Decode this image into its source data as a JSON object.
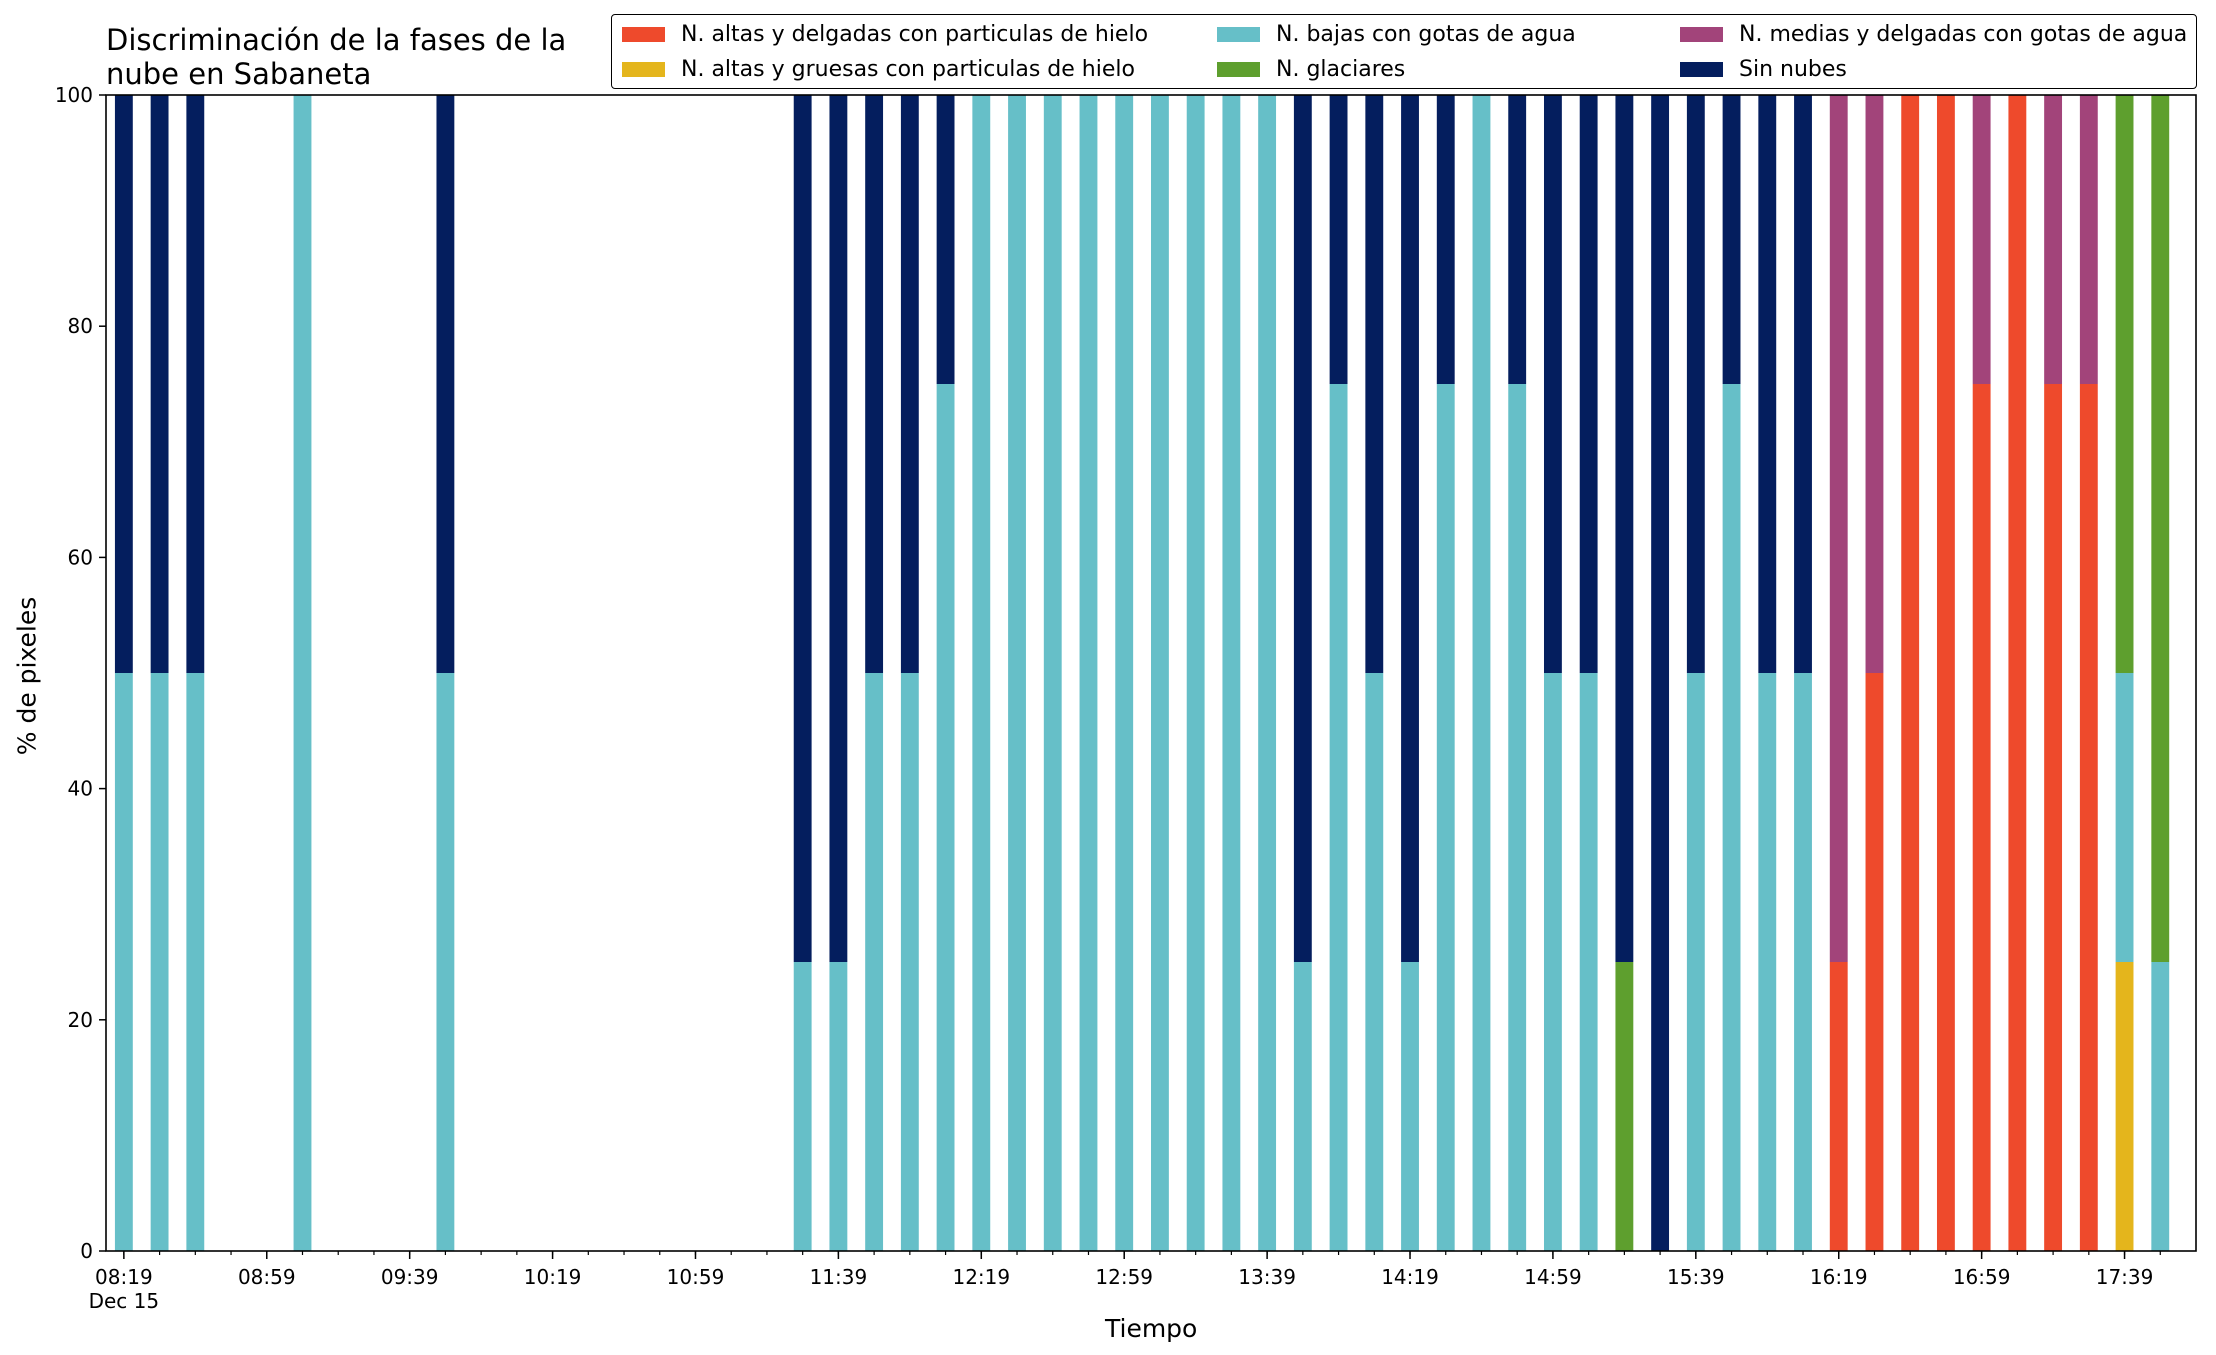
{
  "chart_data": {
    "type": "bar",
    "stacked": true,
    "title": [
      "Discriminación de la fases de la",
      "nube en Sabaneta"
    ],
    "xlabel": "Tiempo",
    "ylabel": "% de pixeles",
    "ylim": [
      0,
      100
    ],
    "yticks": [
      0,
      20,
      40,
      60,
      80,
      100
    ],
    "xlim": [
      "08:14",
      "17:59"
    ],
    "xticks": [
      {
        "time": "08:19",
        "label": "08:19",
        "sublabel": "Dec 15"
      },
      {
        "time": "08:59",
        "label": "08:59"
      },
      {
        "time": "09:39",
        "label": "09:39"
      },
      {
        "time": "10:19",
        "label": "10:19"
      },
      {
        "time": "10:59",
        "label": "10:59"
      },
      {
        "time": "11:39",
        "label": "11:39"
      },
      {
        "time": "12:19",
        "label": "12:19"
      },
      {
        "time": "12:59",
        "label": "12:59"
      },
      {
        "time": "13:39",
        "label": "13:39"
      },
      {
        "time": "14:19",
        "label": "14:19"
      },
      {
        "time": "14:59",
        "label": "14:59"
      },
      {
        "time": "15:39",
        "label": "15:39"
      },
      {
        "time": "16:19",
        "label": "16:19"
      },
      {
        "time": "16:59",
        "label": "16:59"
      },
      {
        "time": "17:39",
        "label": "17:39"
      }
    ],
    "minor_tick_minutes": 10,
    "legend_position": "top-right",
    "series": [
      {
        "name": "N. altas y delgadas con particulas de hielo",
        "color": "#ee4a2c"
      },
      {
        "name": "N. altas y gruesas con particulas de hielo",
        "color": "#e4b51c"
      },
      {
        "name": "N. bajas con gotas de agua",
        "color": "#66bfc8"
      },
      {
        "name": "N. glaciares",
        "color": "#5e9f2e"
      },
      {
        "name": "N. medias y delgadas con gotas de agua",
        "color": "#a2447a"
      },
      {
        "name": "Sin nubes",
        "color": "#041e5e"
      }
    ],
    "stack_order": [
      "N. altas y delgadas con particulas de hielo",
      "N. altas y gruesas con particulas de hielo",
      "N. bajas con gotas de agua",
      "N. glaciares",
      "N. medias y delgadas con gotas de agua",
      "Sin nubes"
    ],
    "bars": [
      {
        "time": "08:19",
        "values": [
          0,
          0,
          50,
          0,
          0,
          50
        ]
      },
      {
        "time": "08:29",
        "values": [
          0,
          0,
          50,
          0,
          0,
          50
        ]
      },
      {
        "time": "08:39",
        "values": [
          0,
          0,
          50,
          0,
          0,
          50
        ]
      },
      {
        "time": "09:09",
        "values": [
          0,
          0,
          100,
          0,
          0,
          0
        ]
      },
      {
        "time": "09:49",
        "values": [
          0,
          0,
          50,
          0,
          0,
          50
        ]
      },
      {
        "time": "11:29",
        "values": [
          0,
          0,
          25,
          0,
          0,
          75
        ]
      },
      {
        "time": "11:39",
        "values": [
          0,
          0,
          25,
          0,
          0,
          75
        ]
      },
      {
        "time": "11:49",
        "values": [
          0,
          0,
          50,
          0,
          0,
          50
        ]
      },
      {
        "time": "11:59",
        "values": [
          0,
          0,
          50,
          0,
          0,
          50
        ]
      },
      {
        "time": "12:09",
        "values": [
          0,
          0,
          75,
          0,
          0,
          25
        ]
      },
      {
        "time": "12:19",
        "values": [
          0,
          0,
          100,
          0,
          0,
          0
        ]
      },
      {
        "time": "12:29",
        "values": [
          0,
          0,
          100,
          0,
          0,
          0
        ]
      },
      {
        "time": "12:39",
        "values": [
          0,
          0,
          100,
          0,
          0,
          0
        ]
      },
      {
        "time": "12:49",
        "values": [
          0,
          0,
          100,
          0,
          0,
          0
        ]
      },
      {
        "time": "12:59",
        "values": [
          0,
          0,
          100,
          0,
          0,
          0
        ]
      },
      {
        "time": "13:09",
        "values": [
          0,
          0,
          100,
          0,
          0,
          0
        ]
      },
      {
        "time": "13:19",
        "values": [
          0,
          0,
          100,
          0,
          0,
          0
        ]
      },
      {
        "time": "13:29",
        "values": [
          0,
          0,
          100,
          0,
          0,
          0
        ]
      },
      {
        "time": "13:39",
        "values": [
          0,
          0,
          100,
          0,
          0,
          0
        ]
      },
      {
        "time": "13:49",
        "values": [
          0,
          0,
          25,
          0,
          0,
          75
        ]
      },
      {
        "time": "13:59",
        "values": [
          0,
          0,
          75,
          0,
          0,
          25
        ]
      },
      {
        "time": "14:09",
        "values": [
          0,
          0,
          50,
          0,
          0,
          50
        ]
      },
      {
        "time": "14:19",
        "values": [
          0,
          0,
          25,
          0,
          0,
          75
        ]
      },
      {
        "time": "14:29",
        "values": [
          0,
          0,
          75,
          0,
          0,
          25
        ]
      },
      {
        "time": "14:39",
        "values": [
          0,
          0,
          100,
          0,
          0,
          0
        ]
      },
      {
        "time": "14:49",
        "values": [
          0,
          0,
          75,
          0,
          0,
          25
        ]
      },
      {
        "time": "14:59",
        "values": [
          0,
          0,
          50,
          0,
          0,
          50
        ]
      },
      {
        "time": "15:09",
        "values": [
          0,
          0,
          50,
          0,
          0,
          50
        ]
      },
      {
        "time": "15:19",
        "values": [
          0,
          0,
          0,
          25,
          0,
          75
        ]
      },
      {
        "time": "15:29",
        "values": [
          0,
          0,
          0,
          0,
          0,
          100
        ]
      },
      {
        "time": "15:39",
        "values": [
          0,
          0,
          50,
          0,
          0,
          50
        ]
      },
      {
        "time": "15:49",
        "values": [
          0,
          0,
          75,
          0,
          0,
          25
        ]
      },
      {
        "time": "15:59",
        "values": [
          0,
          0,
          50,
          0,
          0,
          50
        ]
      },
      {
        "time": "16:09",
        "values": [
          0,
          0,
          50,
          0,
          0,
          50
        ]
      },
      {
        "time": "16:19",
        "values": [
          25,
          0,
          0,
          0,
          75,
          0
        ]
      },
      {
        "time": "16:29",
        "values": [
          50,
          0,
          0,
          0,
          50,
          0
        ]
      },
      {
        "time": "16:39",
        "values": [
          100,
          0,
          0,
          0,
          0,
          0
        ]
      },
      {
        "time": "16:49",
        "values": [
          100,
          0,
          0,
          0,
          0,
          0
        ]
      },
      {
        "time": "16:59",
        "values": [
          75,
          0,
          0,
          0,
          25,
          0
        ]
      },
      {
        "time": "17:09",
        "values": [
          100,
          0,
          0,
          0,
          0,
          0
        ]
      },
      {
        "time": "17:19",
        "values": [
          75,
          0,
          0,
          0,
          25,
          0
        ]
      },
      {
        "time": "17:29",
        "values": [
          75,
          0,
          0,
          0,
          25,
          0
        ]
      },
      {
        "time": "17:39",
        "values": [
          0,
          25,
          25,
          50,
          0,
          0
        ]
      },
      {
        "time": "17:49",
        "values": [
          0,
          0,
          25,
          75,
          0,
          0
        ]
      }
    ]
  }
}
